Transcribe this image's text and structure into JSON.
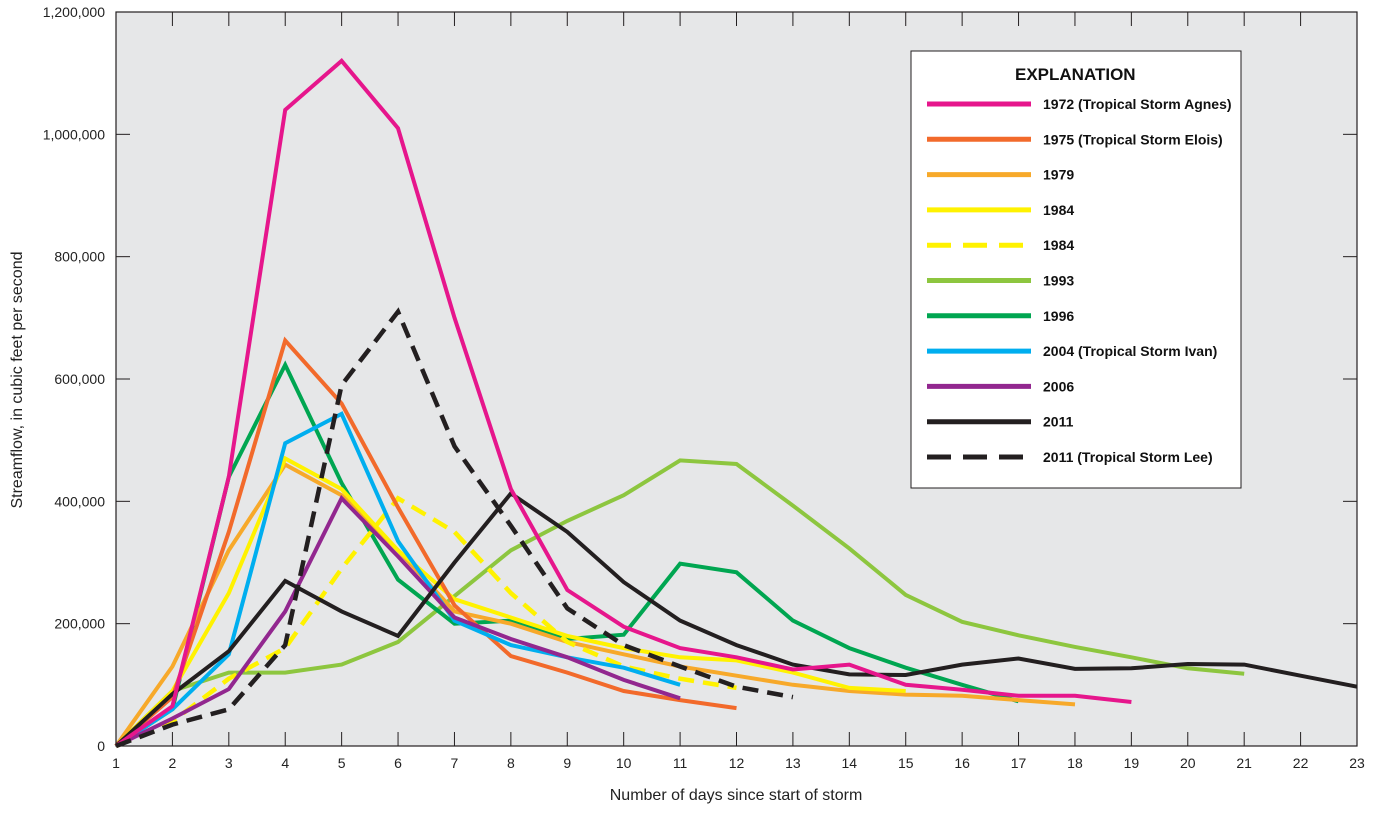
{
  "chart_data": {
    "type": "line",
    "title": "",
    "xlabel": "Number of days since start of storm",
    "ylabel": "Streamflow, in cubic feet per second",
    "xlim": [
      1,
      23
    ],
    "ylim": [
      0,
      1200000
    ],
    "x_ticks": [
      1,
      2,
      3,
      4,
      5,
      6,
      7,
      8,
      9,
      10,
      11,
      12,
      13,
      14,
      15,
      16,
      17,
      18,
      19,
      20,
      21,
      22,
      23
    ],
    "y_ticks": [
      0,
      200000,
      400000,
      600000,
      800000,
      1000000,
      1200000
    ],
    "y_tick_labels": [
      "0",
      "200,000",
      "400,000",
      "600,000",
      "800,000",
      "1,000,000",
      "1,200,000"
    ],
    "grid": false,
    "legend_position": "top-right",
    "legend_title": "EXPLANATION",
    "series": [
      {
        "name": "1972 (Tropical Storm Agnes)",
        "color": "#e6168c",
        "dashed": false,
        "x": [
          1,
          2,
          3,
          4,
          5,
          6,
          7,
          8,
          9,
          10,
          11,
          12,
          13,
          14,
          15,
          16,
          17,
          18,
          19
        ],
        "y": [
          0,
          65000,
          440000,
          1040000,
          1120000,
          1010000,
          700000,
          420000,
          255000,
          195000,
          160000,
          145000,
          125000,
          133000,
          100000,
          92000,
          82000,
          82000,
          72000
        ]
      },
      {
        "name": "1975 (Tropical Storm Elois)",
        "color": "#f26a2b",
        "dashed": false,
        "x": [
          1,
          2,
          3,
          4,
          5,
          6,
          7,
          8,
          9,
          10,
          11,
          12
        ],
        "y": [
          0,
          80000,
          350000,
          663000,
          560000,
          390000,
          230000,
          147000,
          120000,
          90000,
          75000,
          62000
        ]
      },
      {
        "name": "1979",
        "color": "#f7a92a",
        "dashed": false,
        "x": [
          1,
          2,
          3,
          4,
          5,
          6,
          7,
          8,
          9,
          10,
          11,
          12,
          13,
          14,
          15,
          16,
          17,
          18
        ],
        "y": [
          0,
          130000,
          320000,
          460000,
          410000,
          320000,
          220000,
          200000,
          170000,
          150000,
          130000,
          115000,
          100000,
          90000,
          84000,
          82000,
          75000,
          68000
        ]
      },
      {
        "name": "1984",
        "color": "#fff200",
        "dashed": false,
        "x": [
          1,
          2,
          3,
          4,
          5,
          6,
          7,
          8,
          9,
          10,
          11,
          12,
          13,
          14,
          15
        ],
        "y": [
          0,
          90000,
          250000,
          470000,
          420000,
          320000,
          240000,
          210000,
          180000,
          160000,
          145000,
          140000,
          120000,
          95000,
          90000
        ]
      },
      {
        "name": "1984",
        "color": "#fff200",
        "dashed": true,
        "x": [
          1,
          2,
          3,
          4,
          5,
          6,
          7,
          8,
          9,
          10,
          11,
          12
        ],
        "y": [
          0,
          40000,
          110000,
          160000,
          290000,
          405000,
          350000,
          250000,
          170000,
          130000,
          110000,
          95000
        ]
      },
      {
        "name": "1993",
        "color": "#8dc63f",
        "dashed": false,
        "x": [
          1,
          2,
          3,
          4,
          5,
          6,
          7,
          8,
          9,
          10,
          11,
          12,
          13,
          14,
          15,
          16,
          17,
          18,
          19,
          20,
          21
        ],
        "y": [
          0,
          90000,
          120000,
          120000,
          133000,
          170000,
          245000,
          320000,
          368000,
          410000,
          467000,
          461000,
          393000,
          323000,
          247000,
          203000,
          181000,
          162000,
          145000,
          127000,
          118000
        ]
      },
      {
        "name": "1996",
        "color": "#00a651",
        "dashed": false,
        "x": [
          1,
          2,
          3,
          4,
          5,
          6,
          7,
          8,
          9,
          10,
          11,
          12,
          13,
          14,
          15,
          16,
          17
        ],
        "y": [
          0,
          60000,
          440000,
          623000,
          430000,
          272000,
          200000,
          205000,
          175000,
          182000,
          298000,
          284000,
          205000,
          160000,
          128000,
          100000,
          73000
        ]
      },
      {
        "name": "2004 (Tropical Storm Ivan)",
        "color": "#00aeef",
        "dashed": false,
        "x": [
          1,
          2,
          3,
          4,
          5,
          6,
          7,
          8,
          9,
          10,
          11
        ],
        "y": [
          0,
          60000,
          150000,
          495000,
          543000,
          335000,
          205000,
          165000,
          145000,
          128000,
          100000
        ]
      },
      {
        "name": "2006",
        "color": "#92278f",
        "dashed": false,
        "x": [
          1,
          2,
          3,
          4,
          5,
          6,
          7,
          8,
          9,
          10,
          11
        ],
        "y": [
          0,
          45000,
          93000,
          220000,
          405000,
          310000,
          210000,
          175000,
          145000,
          108000,
          78000
        ]
      },
      {
        "name": "2011",
        "color": "#231f20",
        "dashed": false,
        "x": [
          1,
          2,
          3,
          4,
          5,
          6,
          7,
          8,
          9,
          10,
          11,
          12,
          13,
          14,
          15,
          16,
          17,
          18,
          19,
          20,
          21,
          22,
          23
        ],
        "y": [
          0,
          85000,
          155000,
          270000,
          220000,
          180000,
          300000,
          413000,
          350000,
          268000,
          205000,
          165000,
          133000,
          117000,
          116000,
          133000,
          143000,
          126000,
          127000,
          134000,
          133000,
          115000,
          97000
        ]
      },
      {
        "name": "2011 (Tropical Storm Lee)",
        "color": "#231f20",
        "dashed": true,
        "x": [
          1,
          2,
          3,
          4,
          5,
          6,
          7,
          8,
          9,
          10,
          11,
          12,
          13
        ],
        "y": [
          0,
          35000,
          60000,
          165000,
          590000,
          710000,
          490000,
          360000,
          225000,
          165000,
          130000,
          97000,
          80000
        ]
      }
    ]
  }
}
